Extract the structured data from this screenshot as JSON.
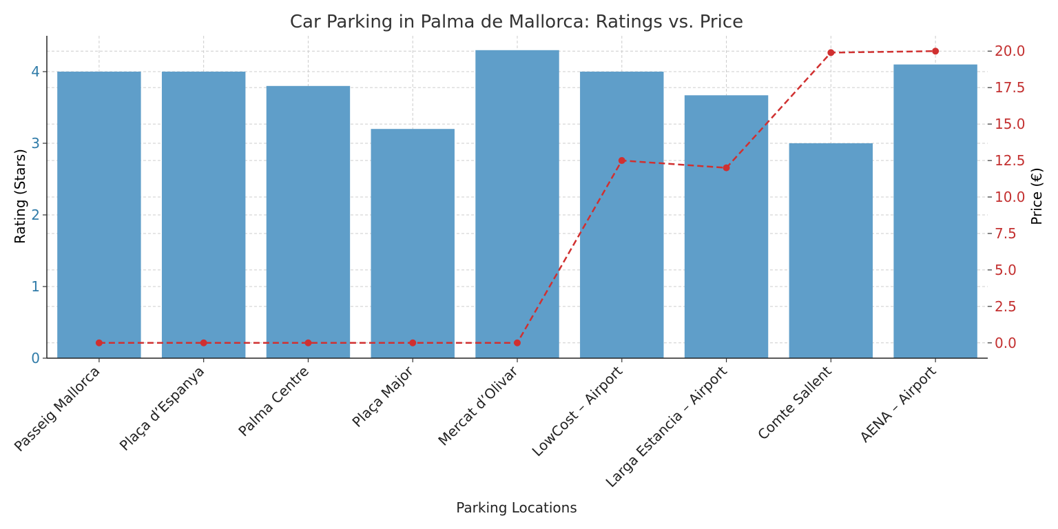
{
  "chart_data": {
    "type": "bar",
    "title": "Car Parking in Palma de Mallorca: Ratings vs. Price",
    "xlabel": "Parking Locations",
    "ylabel": "Rating (Stars)",
    "y2label": "Price (€)",
    "categories": [
      "Passeig Mallorca",
      "Plaça d’Espanya",
      "Palma Centre",
      "Plaça Major",
      "Mercat d’Olivar",
      "LowCost – Airport",
      "Larga Estancia – Airport",
      "Comte Sallent",
      "AENA – Airport"
    ],
    "series": [
      {
        "type": "bar",
        "axis": "left",
        "values": [
          4.0,
          4.0,
          3.8,
          3.2,
          4.3,
          4.0,
          3.67,
          3.0,
          4.1
        ]
      },
      {
        "type": "line",
        "axis": "right",
        "values": [
          0,
          0,
          0,
          0,
          0,
          12.5,
          12.0,
          19.9,
          20.0
        ]
      }
    ],
    "ylim": [
      0,
      4.5
    ],
    "y2lim": [
      -1.05,
      21.05
    ],
    "yticks": [
      "0",
      "1",
      "2",
      "3",
      "4"
    ],
    "y2ticks": [
      "0.0",
      "2.5",
      "5.0",
      "7.5",
      "10.0",
      "12.5",
      "15.0",
      "17.5",
      "20.0"
    ],
    "grid": true,
    "colors": {
      "bar": "#5f9ec9",
      "line": "#d03030",
      "left_axis": "#2f7ba8",
      "right_axis": "#c33030"
    }
  }
}
